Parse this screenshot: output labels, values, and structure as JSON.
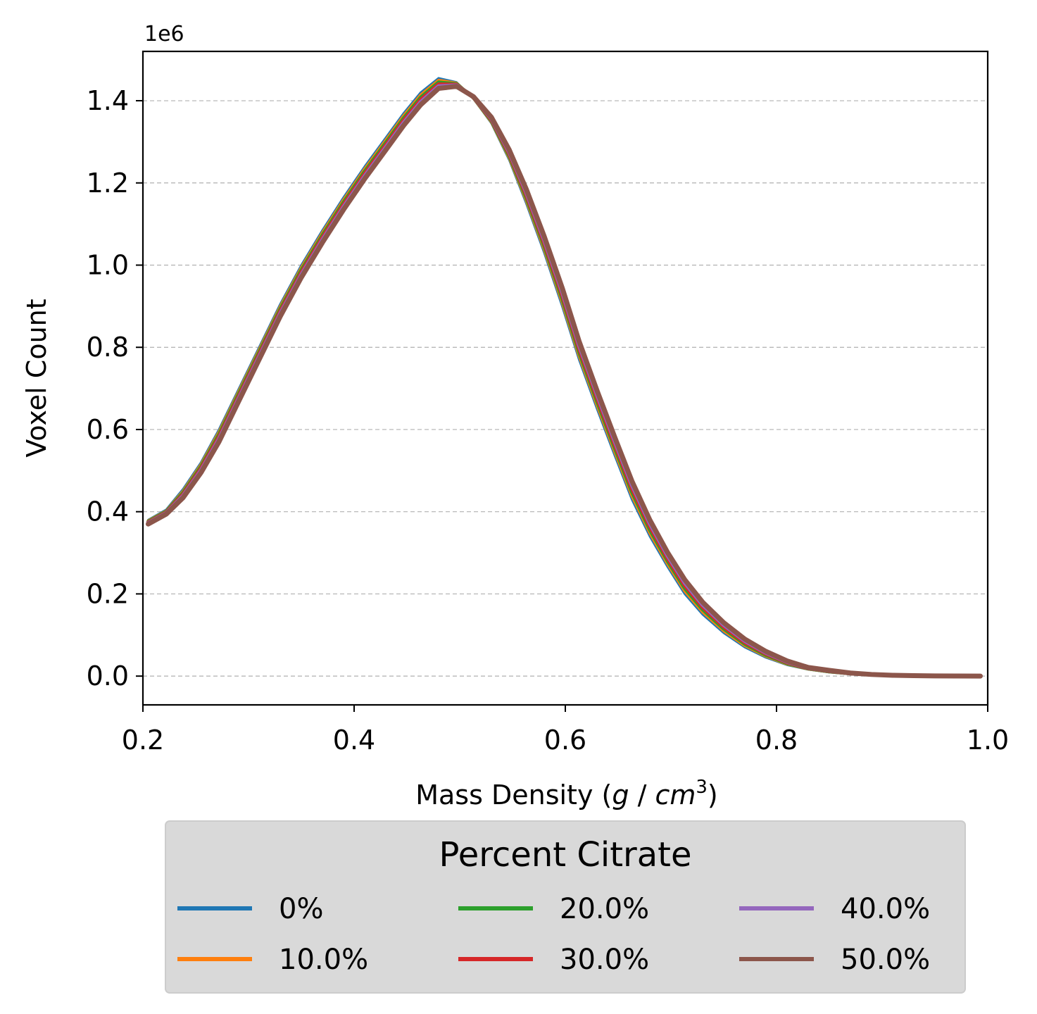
{
  "chart_data": {
    "type": "line",
    "title": "",
    "xlabel": "Mass Density (g / cm³)",
    "xlabel_parts": {
      "prefix": "Mass Density (",
      "g": "g",
      "sep": " / ",
      "cm": "cm",
      "exp": "3",
      "suffix": ")"
    },
    "ylabel": "Voxel Count",
    "y_offset_label": "1e6",
    "xlim": [
      0.2,
      1.0
    ],
    "ylim": [
      -0.07,
      1.52
    ],
    "y_unit_scale": 1000000,
    "xticks": [
      "0.2",
      "0.4",
      "0.6",
      "0.8",
      "1.0"
    ],
    "yticks": [
      "0.0",
      "0.2",
      "0.4",
      "0.6",
      "0.8",
      "1.0",
      "1.2",
      "1.4"
    ],
    "grid": {
      "axis": "y",
      "style": "dashed"
    },
    "legend": {
      "title": "Percent Citrate",
      "placement": "below the axes",
      "columns": 3
    },
    "x": [
      0.205,
      0.222,
      0.238,
      0.255,
      0.272,
      0.29,
      0.31,
      0.33,
      0.35,
      0.37,
      0.39,
      0.41,
      0.43,
      0.447,
      0.463,
      0.48,
      0.497,
      0.513,
      0.53,
      0.547,
      0.563,
      0.58,
      0.597,
      0.613,
      0.63,
      0.647,
      0.663,
      0.68,
      0.697,
      0.713,
      0.73,
      0.75,
      0.77,
      0.79,
      0.81,
      0.83,
      0.85,
      0.87,
      0.89,
      0.91,
      0.93,
      0.95,
      0.97,
      0.993
    ],
    "series": [
      {
        "name": "0%",
        "color": "#1f77b4",
        "values": [
          0.38,
          0.405,
          0.455,
          0.52,
          0.6,
          0.695,
          0.8,
          0.905,
          1.0,
          1.085,
          1.165,
          1.24,
          1.31,
          1.37,
          1.42,
          1.455,
          1.445,
          1.405,
          1.345,
          1.255,
          1.15,
          1.03,
          0.9,
          0.77,
          0.65,
          0.535,
          0.43,
          0.34,
          0.265,
          0.2,
          0.15,
          0.105,
          0.07,
          0.045,
          0.027,
          0.016,
          0.009,
          0.005,
          0.003,
          0.0015,
          0.0008,
          0.0004,
          0.0002,
          0.0001
        ]
      },
      {
        "name": "10.0%",
        "color": "#ff7f0e",
        "values": [
          0.378,
          0.402,
          0.45,
          0.515,
          0.594,
          0.689,
          0.794,
          0.899,
          0.994,
          1.079,
          1.159,
          1.234,
          1.304,
          1.364,
          1.414,
          1.45,
          1.443,
          1.406,
          1.348,
          1.26,
          1.157,
          1.038,
          0.909,
          0.779,
          0.659,
          0.544,
          0.439,
          0.348,
          0.272,
          0.207,
          0.156,
          0.11,
          0.074,
          0.048,
          0.029,
          0.017,
          0.01,
          0.0055,
          0.0032,
          0.0016,
          0.0009,
          0.0004,
          0.0002,
          0.0001
        ]
      },
      {
        "name": "20.0%",
        "color": "#2ca02c",
        "values": [
          0.376,
          0.4,
          0.446,
          0.51,
          0.588,
          0.683,
          0.788,
          0.893,
          0.988,
          1.073,
          1.153,
          1.228,
          1.298,
          1.358,
          1.408,
          1.445,
          1.441,
          1.407,
          1.351,
          1.265,
          1.164,
          1.046,
          0.918,
          0.788,
          0.668,
          0.553,
          0.448,
          0.356,
          0.279,
          0.214,
          0.162,
          0.115,
          0.078,
          0.051,
          0.031,
          0.018,
          0.011,
          0.006,
          0.0034,
          0.0017,
          0.0009,
          0.0005,
          0.0002,
          0.0001
        ]
      },
      {
        "name": "30.0%",
        "color": "#d62728",
        "values": [
          0.374,
          0.398,
          0.442,
          0.505,
          0.582,
          0.677,
          0.782,
          0.887,
          0.982,
          1.067,
          1.147,
          1.222,
          1.292,
          1.352,
          1.402,
          1.44,
          1.439,
          1.408,
          1.354,
          1.27,
          1.171,
          1.054,
          0.927,
          0.797,
          0.677,
          0.562,
          0.457,
          0.364,
          0.286,
          0.221,
          0.168,
          0.12,
          0.082,
          0.054,
          0.033,
          0.019,
          0.012,
          0.0065,
          0.0036,
          0.0018,
          0.001,
          0.0005,
          0.0002,
          0.0001
        ]
      },
      {
        "name": "40.0%",
        "color": "#9467bd",
        "values": [
          0.372,
          0.396,
          0.438,
          0.5,
          0.576,
          0.671,
          0.776,
          0.881,
          0.976,
          1.061,
          1.141,
          1.216,
          1.286,
          1.346,
          1.396,
          1.435,
          1.437,
          1.409,
          1.357,
          1.275,
          1.178,
          1.062,
          0.936,
          0.806,
          0.686,
          0.571,
          0.466,
          0.372,
          0.293,
          0.228,
          0.174,
          0.125,
          0.086,
          0.057,
          0.035,
          0.02,
          0.013,
          0.007,
          0.0038,
          0.0019,
          0.001,
          0.0005,
          0.0002,
          0.0001
        ]
      },
      {
        "name": "50.0%",
        "color": "#8c564b",
        "values": [
          0.37,
          0.394,
          0.434,
          0.495,
          0.57,
          0.665,
          0.77,
          0.875,
          0.97,
          1.055,
          1.135,
          1.21,
          1.28,
          1.34,
          1.39,
          1.43,
          1.435,
          1.41,
          1.36,
          1.28,
          1.185,
          1.07,
          0.945,
          0.815,
          0.695,
          0.58,
          0.475,
          0.38,
          0.3,
          0.235,
          0.18,
          0.13,
          0.09,
          0.06,
          0.037,
          0.021,
          0.014,
          0.0075,
          0.004,
          0.002,
          0.001,
          0.0005,
          0.0002,
          0.0001
        ]
      }
    ]
  }
}
